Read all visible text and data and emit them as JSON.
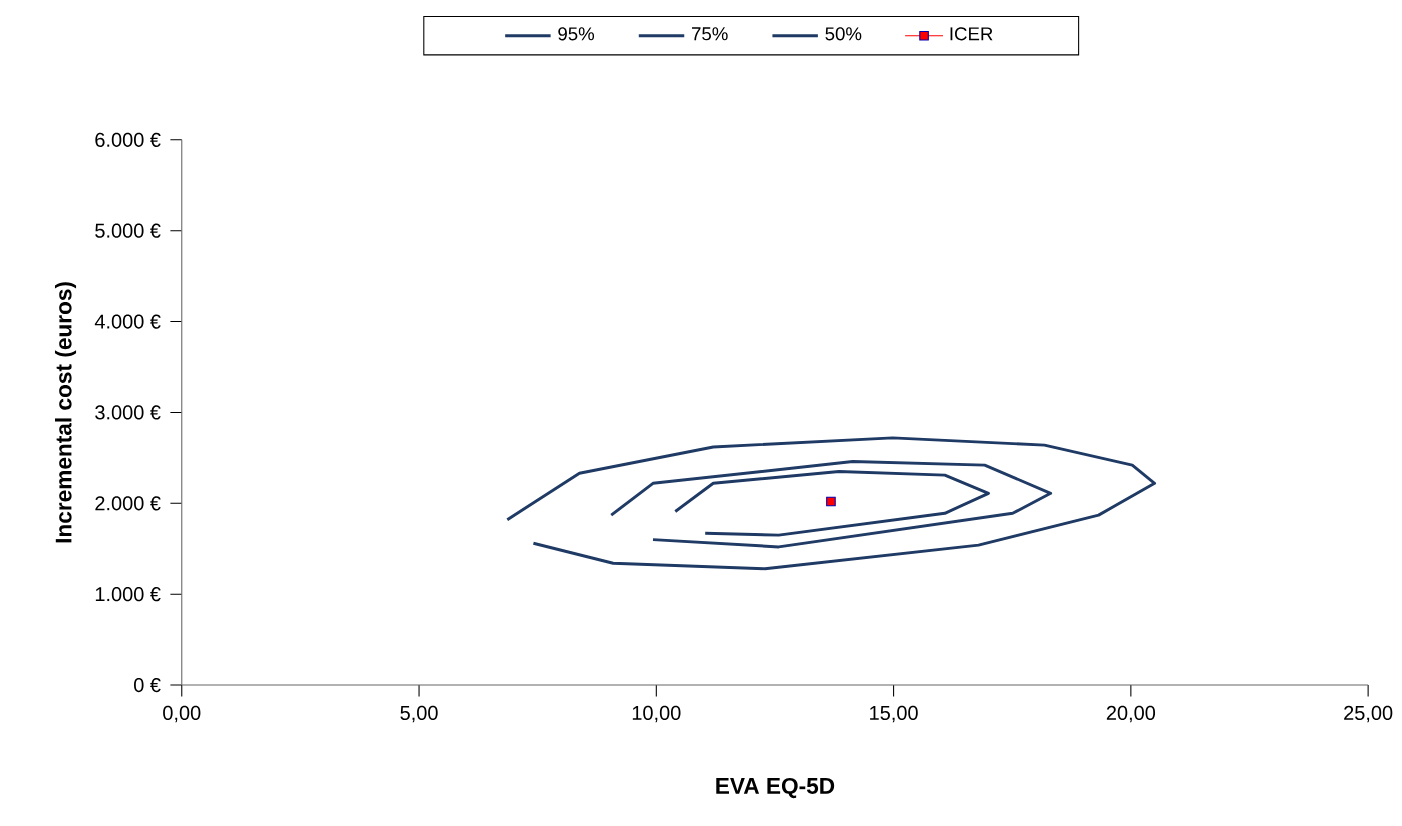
{
  "chart_data": {
    "type": "line",
    "xlabel": "EVA EQ-5D",
    "ylabel": "Incremental cost (euros)",
    "xlim": [
      0,
      25
    ],
    "ylim": [
      0,
      6000
    ],
    "xticks": [
      {
        "value": 0,
        "label": "0,00"
      },
      {
        "value": 5,
        "label": "5,00"
      },
      {
        "value": 10,
        "label": "10,00"
      },
      {
        "value": 15,
        "label": "15,00"
      },
      {
        "value": 20,
        "label": "20,00"
      },
      {
        "value": 25,
        "label": "25,00"
      }
    ],
    "yticks": [
      {
        "value": 0,
        "label": "0 €"
      },
      {
        "value": 1000,
        "label": "1.000 €"
      },
      {
        "value": 2000,
        "label": "2.000 €"
      },
      {
        "value": 3000,
        "label": "3.000 €"
      },
      {
        "value": 4000,
        "label": "4.000 €"
      },
      {
        "value": 5000,
        "label": "5.000 €"
      },
      {
        "value": 6000,
        "label": "6.000 €"
      }
    ],
    "grid": false,
    "legend": "top",
    "marker": "none",
    "line_style": "solid",
    "series": [
      {
        "name": "95%",
        "color": "#1f3a64",
        "x": [
          6.86,
          8.38,
          11.2,
          14.98,
          18.18,
          20.03,
          20.5,
          19.32,
          16.79,
          12.29,
          9.09,
          7.41
        ],
        "values": [
          1820,
          2330,
          2620,
          2720,
          2640,
          2420,
          2220,
          1870,
          1540,
          1280,
          1340,
          1560
        ]
      },
      {
        "name": "75%",
        "color": "#203b65",
        "x": [
          9.05,
          9.93,
          14.14,
          16.92,
          18.31,
          17.51,
          12.58,
          9.93
        ],
        "values": [
          1870,
          2220,
          2460,
          2420,
          2110,
          1890,
          1520,
          1600
        ]
      },
      {
        "name": "50%",
        "color": "#1e3963",
        "x": [
          10.4,
          11.2,
          13.85,
          16.08,
          17.0,
          16.08,
          12.58,
          11.03
        ],
        "values": [
          1910,
          2220,
          2350,
          2310,
          2110,
          1890,
          1650,
          1670
        ]
      },
      {
        "name": "ICER",
        "type": "scatter",
        "marker": "square",
        "color": "#ff0000",
        "x": [
          13.68
        ],
        "values": [
          2020
        ]
      }
    ]
  }
}
